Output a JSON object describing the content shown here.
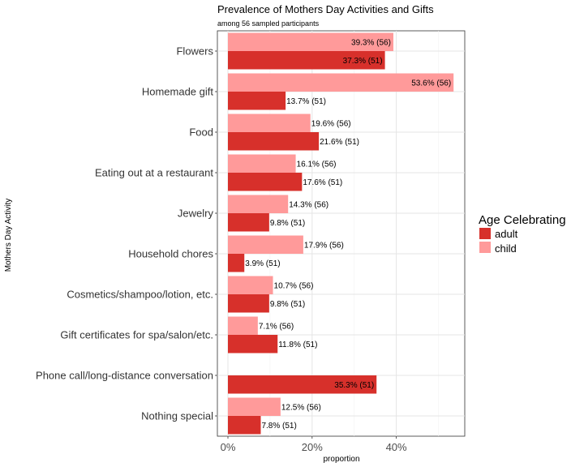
{
  "chart_data": {
    "type": "bar",
    "orientation": "horizontal",
    "title": "Prevalence of Mothers Day Activities and Gifts",
    "subtitle": "among 56 sampled participants",
    "xlabel": "proportion",
    "ylabel": "Mothers Day Activity",
    "xlim": [
      0,
      0.56
    ],
    "xticks": [
      0,
      0.2,
      0.4
    ],
    "xtick_labels": [
      "0%",
      "20%",
      "40%"
    ],
    "grid": true,
    "legend": {
      "title": "Age Celebrating",
      "position": "right"
    },
    "categories": [
      "Flowers",
      "Homemade gift",
      "Food",
      "Eating out at a restaurant",
      "Jewelry",
      "Household chores",
      "Cosmetics/shampoo/lotion, etc.",
      "Gift certificates for spa/salon/etc.",
      "Phone call/long-distance conversation",
      "Nothing special"
    ],
    "series": [
      {
        "name": "adult",
        "color": "#d7302b",
        "values": [
          0.373,
          0.137,
          0.216,
          0.176,
          0.098,
          0.039,
          0.098,
          0.118,
          0.353,
          0.078
        ],
        "labels": [
          "37.3% (51)",
          "13.7% (51)",
          "21.6% (51)",
          "17.6% (51)",
          "9.8% (51)",
          "3.9% (51)",
          "9.8% (51)",
          "11.8% (51)",
          "35.3% (51)",
          "7.8% (51)"
        ]
      },
      {
        "name": "child",
        "color": "#ff9a9a",
        "values": [
          0.393,
          0.536,
          0.196,
          0.161,
          0.143,
          0.179,
          0.107,
          0.071,
          null,
          0.125
        ],
        "labels": [
          "39.3% (56)",
          "53.6% (56)",
          "19.6% (56)",
          "16.1% (56)",
          "14.3% (56)",
          "17.9% (56)",
          "10.7% (56)",
          "7.1% (56)",
          null,
          "12.5% (56)"
        ]
      }
    ]
  }
}
